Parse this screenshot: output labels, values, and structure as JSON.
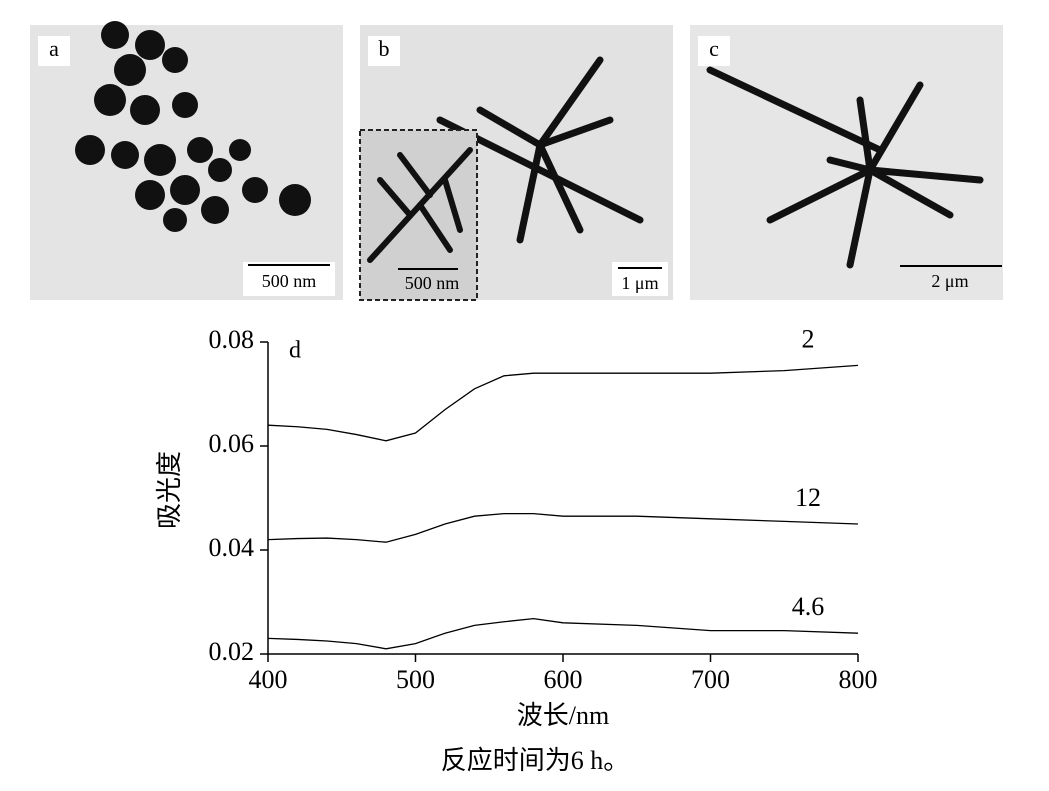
{
  "panels": [
    {
      "label": "a",
      "scale_bars": [
        "500 nm"
      ]
    },
    {
      "label": "b",
      "scale_bars": [
        "500 nm",
        "1 μm"
      ]
    },
    {
      "label": "c",
      "scale_bars": [
        "2 μm"
      ]
    }
  ],
  "chart_data": {
    "type": "line",
    "panel_label": "d",
    "x_label": "波长/nm",
    "y_label": "吸光度",
    "x": [
      400,
      420,
      440,
      460,
      480,
      500,
      520,
      540,
      560,
      580,
      600,
      650,
      700,
      750,
      800
    ],
    "series": [
      {
        "name": "2",
        "color": "#000000",
        "values": [
          0.064,
          0.0637,
          0.0632,
          0.0622,
          0.061,
          0.0625,
          0.067,
          0.071,
          0.0735,
          0.074,
          0.074,
          0.074,
          0.074,
          0.0745,
          0.0755
        ]
      },
      {
        "name": "12",
        "color": "#000000",
        "values": [
          0.042,
          0.0422,
          0.0423,
          0.042,
          0.0415,
          0.043,
          0.045,
          0.0465,
          0.047,
          0.047,
          0.0465,
          0.0465,
          0.046,
          0.0455,
          0.045
        ]
      },
      {
        "name": "4.6",
        "color": "#000000",
        "values": [
          0.023,
          0.0228,
          0.0225,
          0.022,
          0.021,
          0.022,
          0.024,
          0.0255,
          0.0262,
          0.0268,
          0.026,
          0.0255,
          0.0245,
          0.0245,
          0.024
        ]
      }
    ],
    "xlim": [
      400,
      800
    ],
    "xticks": [
      400,
      500,
      600,
      700,
      800
    ],
    "ylim": [
      0.02,
      0.08
    ],
    "yticks": [
      0.02,
      0.04,
      0.06,
      0.08
    ]
  },
  "caption": "反应时间为6 h。"
}
